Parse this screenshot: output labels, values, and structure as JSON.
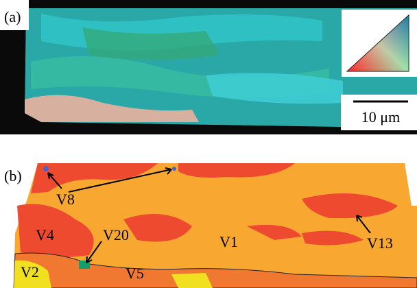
{
  "panel_a": {
    "label": "(a)",
    "scale_bar": "10 μm"
  },
  "panel_b": {
    "label": "(b)",
    "variants": [
      "V8",
      "V4",
      "V20",
      "V1",
      "V13",
      "V2",
      "V5"
    ]
  }
}
